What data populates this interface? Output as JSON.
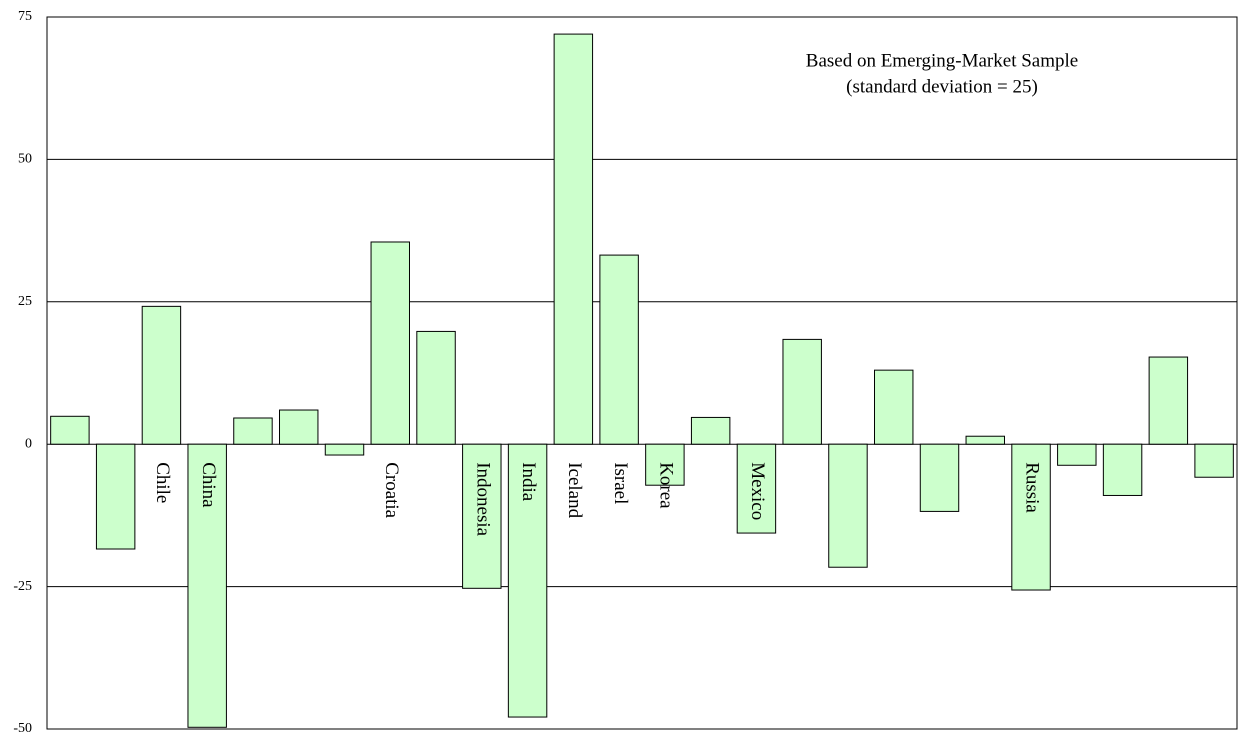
{
  "chart_data": {
    "type": "bar",
    "annotations": [
      "Based on Emerging-Market Sample",
      "(standard deviation = 25)"
    ],
    "categories": [
      null,
      null,
      "Chile",
      "China",
      null,
      null,
      null,
      "Croatia",
      null,
      "Indonesia",
      "India",
      "Iceland",
      "Israel",
      "Korea",
      null,
      "Mexico",
      null,
      null,
      null,
      null,
      null,
      "Russia",
      null,
      null,
      null,
      null
    ],
    "values": [
      4.9,
      -18.4,
      24.2,
      -49.7,
      4.6,
      6.0,
      -1.9,
      35.5,
      19.8,
      -25.3,
      -47.9,
      72.0,
      33.2,
      -7.2,
      4.7,
      -15.6,
      18.4,
      -21.6,
      13.0,
      -11.8,
      1.4,
      -25.6,
      -3.7,
      -9.0,
      15.3,
      -5.8
    ],
    "color": "#ccffcc",
    "ylim": [
      -50,
      75
    ],
    "yticks": [
      -50,
      -25,
      0,
      25,
      50,
      75
    ],
    "grid": true
  }
}
